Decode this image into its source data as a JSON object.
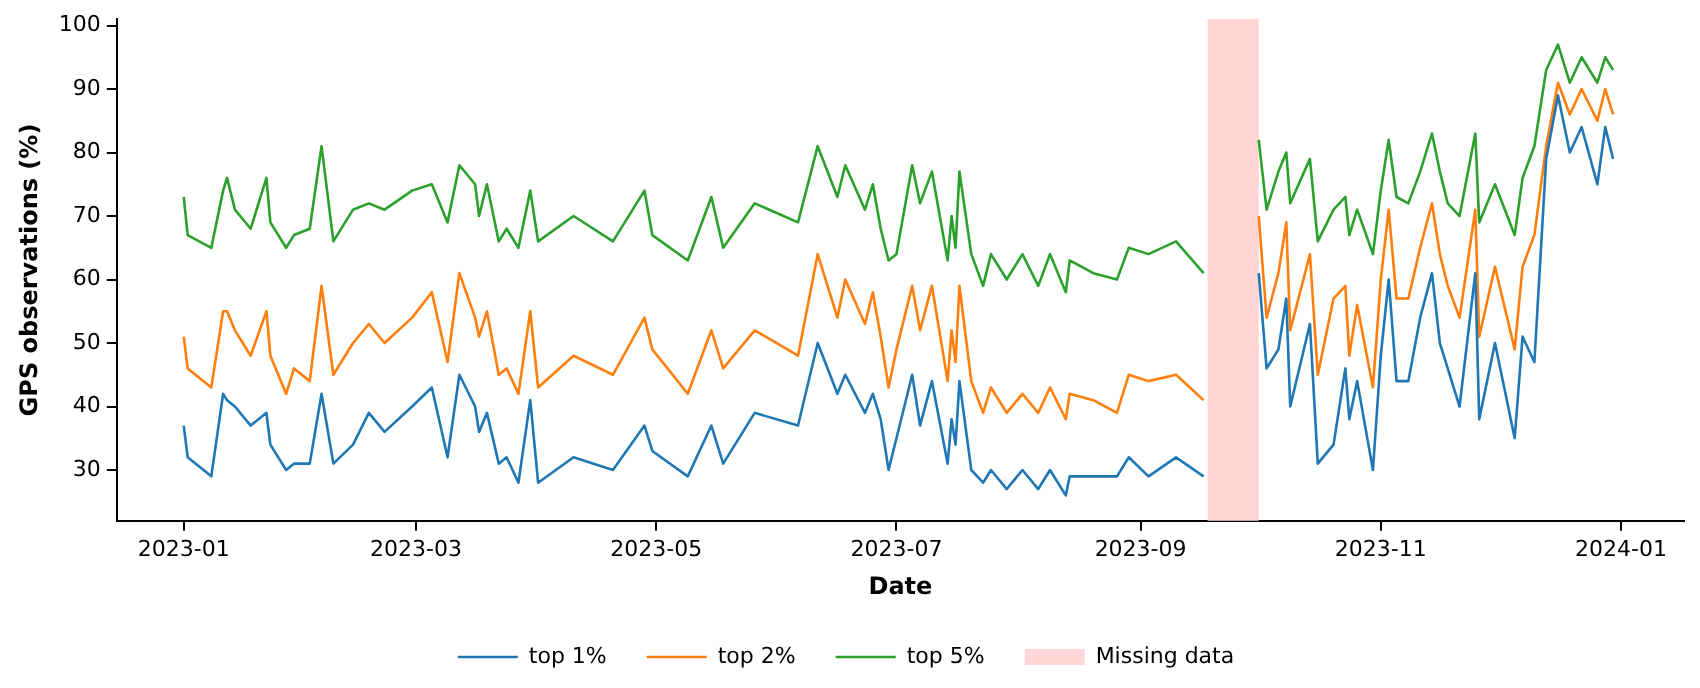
{
  "chart_data": {
    "type": "line",
    "xlabel": "Date",
    "ylabel": "GPS observations (%)",
    "x": [
      "2023-01-01",
      "2023-01-02",
      "2023-01-08",
      "2023-01-11",
      "2023-01-12",
      "2023-01-14",
      "2023-01-18",
      "2023-01-22",
      "2023-01-23",
      "2023-01-27",
      "2023-01-29",
      "2023-02-02",
      "2023-02-05",
      "2023-02-08",
      "2023-02-13",
      "2023-02-17",
      "2023-02-21",
      "2023-02-28",
      "2023-03-05",
      "2023-03-09",
      "2023-03-12",
      "2023-03-16",
      "2023-03-17",
      "2023-03-19",
      "2023-03-22",
      "2023-03-24",
      "2023-03-27",
      "2023-03-30",
      "2023-04-01",
      "2023-04-10",
      "2023-04-20",
      "2023-04-28",
      "2023-04-30",
      "2023-05-09",
      "2023-05-15",
      "2023-05-18",
      "2023-05-26",
      "2023-06-06",
      "2023-06-11",
      "2023-06-16",
      "2023-06-18",
      "2023-06-23",
      "2023-06-25",
      "2023-06-27",
      "2023-06-29",
      "2023-07-01",
      "2023-07-05",
      "2023-07-07",
      "2023-07-10",
      "2023-07-14",
      "2023-07-15",
      "2023-07-16",
      "2023-07-17",
      "2023-07-20",
      "2023-07-23",
      "2023-07-25",
      "2023-07-29",
      "2023-08-02",
      "2023-08-06",
      "2023-08-09",
      "2023-08-13",
      "2023-08-14",
      "2023-08-20",
      "2023-08-26",
      "2023-08-29",
      "2023-09-03",
      "2023-09-10",
      "2023-09-17",
      "2023-09-25",
      "2023-10-01",
      "2023-10-03",
      "2023-10-06",
      "2023-10-08",
      "2023-10-09",
      "2023-10-14",
      "2023-10-16",
      "2023-10-20",
      "2023-10-23",
      "2023-10-24",
      "2023-10-26",
      "2023-10-30",
      "2023-11-01",
      "2023-11-03",
      "2023-11-05",
      "2023-11-08",
      "2023-11-11",
      "2023-11-14",
      "2023-11-16",
      "2023-11-18",
      "2023-11-21",
      "2023-11-25",
      "2023-11-26",
      "2023-11-30",
      "2023-12-05",
      "2023-12-07",
      "2023-12-10",
      "2023-12-13",
      "2023-12-16",
      "2023-12-19",
      "2023-12-22",
      "2023-12-26",
      "2023-12-28",
      "2023-12-30"
    ],
    "series": [
      {
        "name": "top 1%",
        "color": "#1f77b4",
        "values": [
          37,
          32,
          29,
          42,
          41,
          40,
          37,
          39,
          34,
          30,
          31,
          31,
          42,
          31,
          34,
          39,
          36,
          40,
          43,
          32,
          45,
          40,
          36,
          39,
          31,
          32,
          28,
          41,
          28,
          32,
          30,
          37,
          33,
          29,
          37,
          31,
          39,
          37,
          50,
          42,
          45,
          39,
          42,
          38,
          30,
          35,
          45,
          37,
          44,
          31,
          38,
          34,
          44,
          30,
          28,
          30,
          27,
          30,
          27,
          30,
          26,
          29,
          29,
          29,
          32,
          29,
          32,
          29,
          null,
          61,
          46,
          49,
          57,
          40,
          53,
          31,
          34,
          46,
          38,
          44,
          30,
          48,
          60,
          44,
          44,
          54,
          61,
          50,
          46,
          40,
          61,
          38,
          50,
          35,
          51,
          47,
          79,
          89,
          80,
          84,
          75,
          84,
          79
        ]
      },
      {
        "name": "top 2%",
        "color": "#ff7f0e",
        "values": [
          51,
          46,
          43,
          55,
          55,
          52,
          48,
          55,
          48,
          42,
          46,
          44,
          59,
          45,
          50,
          53,
          50,
          54,
          58,
          47,
          61,
          54,
          51,
          55,
          45,
          46,
          42,
          55,
          43,
          48,
          45,
          54,
          49,
          42,
          52,
          46,
          52,
          48,
          64,
          54,
          60,
          53,
          58,
          51,
          43,
          49,
          59,
          52,
          59,
          44,
          52,
          47,
          59,
          44,
          39,
          43,
          39,
          42,
          39,
          43,
          38,
          42,
          41,
          39,
          45,
          44,
          45,
          41,
          null,
          70,
          54,
          61,
          69,
          52,
          64,
          45,
          57,
          59,
          48,
          56,
          43,
          60,
          71,
          57,
          57,
          65,
          72,
          64,
          59,
          54,
          71,
          51,
          62,
          49,
          62,
          67,
          81,
          91,
          86,
          90,
          85,
          90,
          86
        ]
      },
      {
        "name": "top 5%",
        "color": "#2ca02c",
        "values": [
          73,
          67,
          65,
          74,
          76,
          71,
          68,
          76,
          69,
          65,
          67,
          68,
          81,
          66,
          71,
          72,
          71,
          74,
          75,
          69,
          78,
          75,
          70,
          75,
          66,
          68,
          65,
          74,
          66,
          70,
          66,
          74,
          67,
          63,
          73,
          65,
          72,
          69,
          81,
          73,
          78,
          71,
          75,
          68,
          63,
          64,
          78,
          72,
          77,
          63,
          70,
          65,
          77,
          64,
          59,
          64,
          60,
          64,
          59,
          64,
          58,
          63,
          61,
          60,
          65,
          64,
          66,
          61,
          null,
          82,
          71,
          77,
          80,
          72,
          79,
          66,
          71,
          73,
          67,
          71,
          64,
          74,
          82,
          73,
          72,
          77,
          83,
          77,
          72,
          70,
          83,
          69,
          75,
          67,
          76,
          81,
          93,
          97,
          91,
          95,
          91,
          95,
          93
        ]
      }
    ],
    "xlim": [
      "2022-12-15",
      "2024-01-17"
    ],
    "xticks": [
      "2023-01",
      "2023-03",
      "2023-05",
      "2023-07",
      "2023-09",
      "2023-11",
      "2024-01"
    ],
    "ylim": [
      22,
      101
    ],
    "yticks": [
      30,
      40,
      50,
      60,
      70,
      80,
      90,
      100
    ],
    "bands": [
      {
        "axis": "x",
        "from": "2023-09-18",
        "to": "2023-10-01",
        "label": "Missing data",
        "color": "#ffd6d6"
      }
    ],
    "legend": "bottom",
    "marker": "none",
    "line_style": "solid"
  }
}
